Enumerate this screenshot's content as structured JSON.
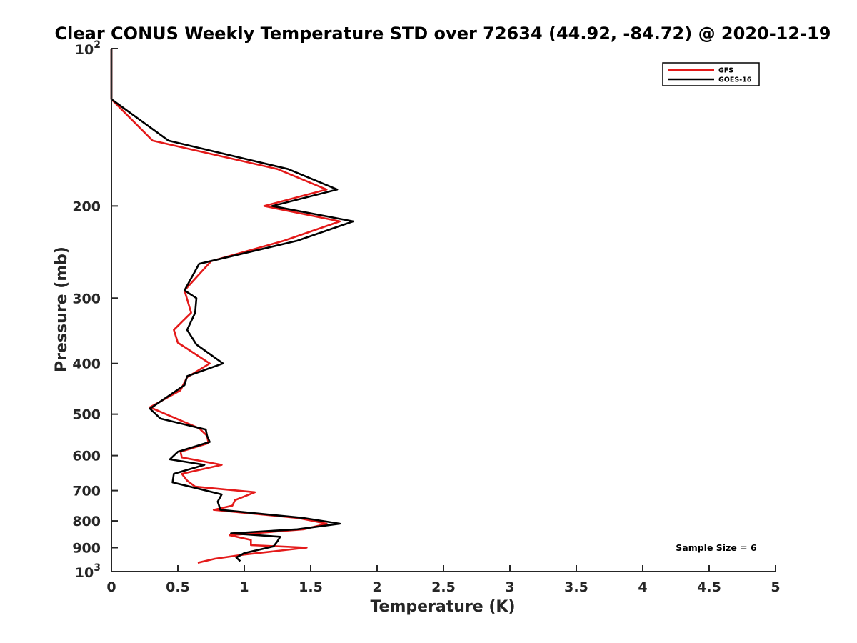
{
  "chart_data": {
    "type": "line",
    "title": "Clear CONUS Weekly Temperature STD over 72634 (44.92, -84.72) @ 2020-12-19",
    "xlabel": "Temperature (K)",
    "ylabel": "Pressure (mb)",
    "xlim": [
      0,
      5
    ],
    "ylim": [
      100,
      1000
    ],
    "y_scale": "log",
    "y_reversed": true,
    "grid": false,
    "legend_position": "top-right",
    "annotation": "Sample Size = 6",
    "x_ticks": [
      {
        "value": 0,
        "label": "0"
      },
      {
        "value": 0.5,
        "label": "0.5"
      },
      {
        "value": 1,
        "label": "1"
      },
      {
        "value": 1.5,
        "label": "1.5"
      },
      {
        "value": 2,
        "label": "2"
      },
      {
        "value": 2.5,
        "label": "2.5"
      },
      {
        "value": 3,
        "label": "3"
      },
      {
        "value": 3.5,
        "label": "3.5"
      },
      {
        "value": 4,
        "label": "4"
      },
      {
        "value": 4.5,
        "label": "4.5"
      },
      {
        "value": 5,
        "label": "5"
      }
    ],
    "y_ticks": [
      {
        "value": 100,
        "base": "10",
        "exp": "2"
      },
      {
        "value": 200,
        "label": "200"
      },
      {
        "value": 300,
        "label": "300"
      },
      {
        "value": 400,
        "label": "400"
      },
      {
        "value": 500,
        "label": "500"
      },
      {
        "value": 600,
        "label": "600"
      },
      {
        "value": 700,
        "label": "700"
      },
      {
        "value": 800,
        "label": "800"
      },
      {
        "value": 900,
        "label": "900"
      },
      {
        "value": 1000,
        "base": "10",
        "exp": "3"
      }
    ],
    "series": [
      {
        "name": "GFS",
        "color": "#e41a1a",
        "points": [
          [
            0,
            100
          ],
          [
            0,
            125
          ],
          [
            0.31,
            150
          ],
          [
            1.25,
            170
          ],
          [
            1.62,
            186
          ],
          [
            1.15,
            200
          ],
          [
            1.72,
            214
          ],
          [
            1.3,
            233
          ],
          [
            0.75,
            255
          ],
          [
            0.55,
            290
          ],
          [
            0.6,
            320
          ],
          [
            0.47,
            345
          ],
          [
            0.5,
            365
          ],
          [
            0.74,
            400
          ],
          [
            0.57,
            425
          ],
          [
            0.52,
            450
          ],
          [
            0.29,
            485
          ],
          [
            0.45,
            505
          ],
          [
            0.66,
            532
          ],
          [
            0.72,
            550
          ],
          [
            0.73,
            568
          ],
          [
            0.52,
            590
          ],
          [
            0.53,
            605
          ],
          [
            0.83,
            625
          ],
          [
            0.53,
            650
          ],
          [
            0.57,
            670
          ],
          [
            0.63,
            688
          ],
          [
            1.08,
            705
          ],
          [
            0.93,
            730
          ],
          [
            0.91,
            748
          ],
          [
            0.77,
            762
          ],
          [
            1.41,
            790
          ],
          [
            1.62,
            810
          ],
          [
            1.45,
            830
          ],
          [
            0.89,
            852
          ],
          [
            1.05,
            870
          ],
          [
            1.05,
            890
          ],
          [
            1.47,
            900
          ],
          [
            1.0,
            928
          ],
          [
            0.78,
            945
          ],
          [
            0.65,
            962
          ]
        ]
      },
      {
        "name": "GOES-16",
        "color": "#000000",
        "points": [
          [
            0,
            100
          ],
          [
            0,
            125
          ],
          [
            0.43,
            150
          ],
          [
            1.33,
            170
          ],
          [
            1.7,
            186
          ],
          [
            1.21,
            200
          ],
          [
            1.82,
            214
          ],
          [
            1.4,
            233
          ],
          [
            0.66,
            258
          ],
          [
            0.55,
            290
          ],
          [
            0.64,
            300
          ],
          [
            0.63,
            320
          ],
          [
            0.57,
            345
          ],
          [
            0.64,
            368
          ],
          [
            0.84,
            400
          ],
          [
            0.57,
            423
          ],
          [
            0.55,
            440
          ],
          [
            0.29,
            488
          ],
          [
            0.37,
            510
          ],
          [
            0.71,
            535
          ],
          [
            0.72,
            550
          ],
          [
            0.74,
            565
          ],
          [
            0.5,
            590
          ],
          [
            0.44,
            610
          ],
          [
            0.7,
            625
          ],
          [
            0.47,
            650
          ],
          [
            0.46,
            675
          ],
          [
            0.83,
            712
          ],
          [
            0.8,
            735
          ],
          [
            0.81,
            748
          ],
          [
            0.82,
            762
          ],
          [
            1.45,
            790
          ],
          [
            1.72,
            810
          ],
          [
            1.4,
            830
          ],
          [
            0.9,
            845
          ],
          [
            1.27,
            858
          ],
          [
            1.25,
            875
          ],
          [
            1.22,
            895
          ],
          [
            1.0,
            922
          ],
          [
            0.94,
            940
          ],
          [
            0.97,
            955
          ]
        ]
      }
    ]
  }
}
